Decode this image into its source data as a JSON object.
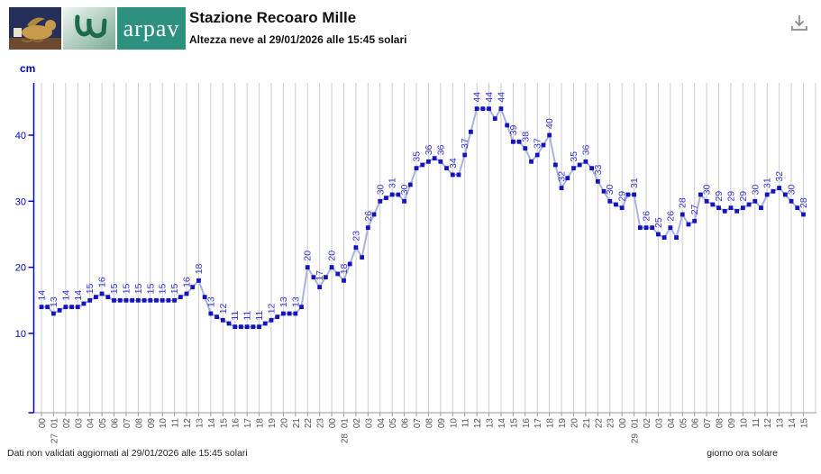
{
  "header": {
    "title": "Stazione Recoaro Mille",
    "subtitle": "Altezza neve al 29/01/2026 alle 15:45 solari",
    "arpav_wordmark": "arpav"
  },
  "icons": {
    "download": "download-icon",
    "veneto_lion": "veneto-lion-logo",
    "arpav_symbol": "arpav-symbol-logo"
  },
  "footer": {
    "left": "Dati non validati aggiornati al 29/01/2026 alle 15:45 solari",
    "right": "giorno ora solare"
  },
  "chart_data": {
    "type": "line",
    "title": "Altezza neve al 29/01/2026 alle 15:45 solari",
    "unit_label": "cm",
    "xlabel": "giorno ora solare",
    "ylim": [
      0,
      48
    ],
    "yticks": [
      10,
      20,
      30,
      40
    ],
    "grid": "vertical-hourly",
    "x_hours": [
      "00",
      "01",
      "02",
      "03",
      "04",
      "05",
      "06",
      "07",
      "08",
      "09",
      "10",
      "11",
      "12",
      "13",
      "14",
      "15",
      "16",
      "17",
      "18",
      "19",
      "20",
      "21",
      "22",
      "23",
      "00",
      "01",
      "02",
      "03",
      "04",
      "05",
      "06",
      "07",
      "08",
      "09",
      "10",
      "11",
      "12",
      "13",
      "14",
      "15",
      "16",
      "17",
      "18",
      "19",
      "20",
      "21",
      "22",
      "23",
      "00",
      "01",
      "02",
      "03",
      "04",
      "05",
      "06",
      "07",
      "08",
      "09",
      "10",
      "11",
      "12",
      "13",
      "14",
      "15"
    ],
    "x_day_marks": {
      "1": "27",
      "25": "28",
      "49": "29"
    },
    "hourly_values": [
      14,
      13,
      14,
      14,
      15,
      16,
      15,
      15,
      15,
      15,
      15,
      15,
      16,
      18,
      13,
      12,
      11,
      11,
      11,
      12,
      13,
      13,
      20,
      17,
      20,
      18,
      23,
      26,
      30,
      31,
      30,
      35,
      36,
      36,
      34,
      37,
      44,
      44,
      44,
      39,
      38,
      37,
      40,
      32,
      35,
      36,
      33,
      30,
      29,
      31,
      26,
      25,
      26,
      28,
      27,
      30,
      29,
      29,
      29,
      30,
      31,
      32,
      30,
      28
    ],
    "half_hour_values": [
      14,
      13.5,
      14,
      14.5,
      15.5,
      15.5,
      15,
      15,
      15,
      15,
      15,
      15.5,
      17,
      15.5,
      12.5,
      11.5,
      11,
      11,
      11.5,
      12.5,
      13,
      14,
      18.5,
      18.5,
      19,
      20.5,
      21.5,
      28,
      30.5,
      31,
      32.5,
      35.5,
      36.5,
      35,
      34,
      40.5,
      44,
      42.5,
      41.5,
      39,
      36,
      38.5,
      35.5,
      33.5,
      35.5,
      35,
      31.5,
      29.5,
      31,
      26,
      26,
      24.5,
      24.5,
      26.5,
      31,
      29.5,
      28.5,
      28.5,
      29.5,
      29,
      31.5,
      31,
      29
    ],
    "colors": {
      "axis_blue": "#0000cc",
      "line": "#a9b2de",
      "point": "#1414be",
      "value_label": "#3333cc",
      "grid": "#cccccc",
      "x_axis": "#999999",
      "x_tick_text": "#555555"
    }
  }
}
